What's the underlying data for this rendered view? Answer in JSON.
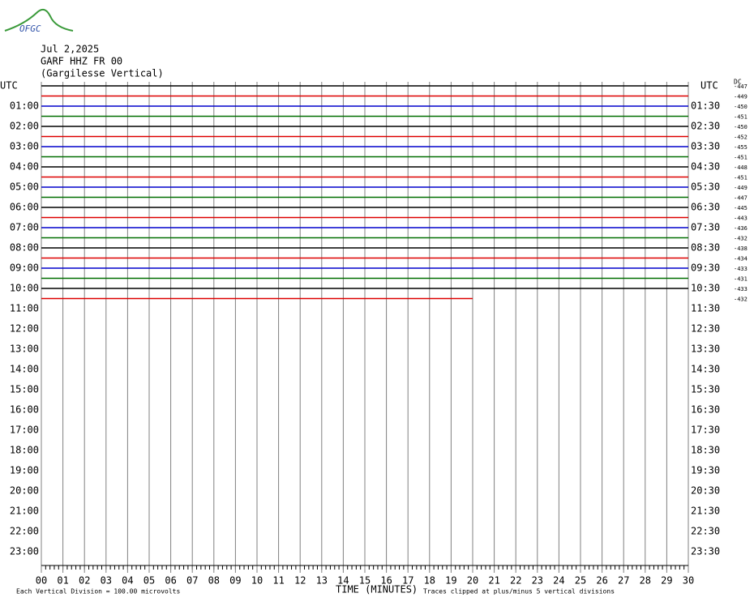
{
  "logo": "OFGC",
  "header": {
    "date": "Jul 2,2025",
    "station": "GARF HHZ FR 00",
    "location": "(Gargilesse Vertical)"
  },
  "chart_data": {
    "type": "helicorder",
    "left_axis_label": "UTC",
    "right_axis_label": "UTC",
    "dc_label": "DC",
    "left_labels": [
      "01:00",
      "02:00",
      "03:00",
      "04:00",
      "05:00",
      "06:00",
      "07:00",
      "08:00",
      "09:00",
      "10:00",
      "11:00",
      "12:00",
      "13:00",
      "14:00",
      "15:00",
      "16:00",
      "17:00",
      "18:00",
      "19:00",
      "20:00",
      "21:00",
      "22:00",
      "23:00"
    ],
    "right_labels": [
      "01:30",
      "02:30",
      "03:30",
      "04:30",
      "05:30",
      "06:30",
      "07:30",
      "08:30",
      "09:30",
      "10:30",
      "11:30",
      "12:30",
      "13:30",
      "14:30",
      "15:30",
      "16:30",
      "17:30",
      "18:30",
      "19:30",
      "20:30",
      "21:30",
      "22:30",
      "23:30"
    ],
    "dc_offsets": [
      -447,
      -449,
      -450,
      -451,
      -450,
      -452,
      -455,
      -451,
      -448,
      -451,
      -449,
      -447,
      -445,
      -443,
      -436,
      -432,
      -438,
      -434,
      -433,
      -431,
      -433,
      -432
    ],
    "trace_colors": [
      "#000000",
      "#dd0000",
      "#0000cc",
      "#006e00"
    ],
    "last_trace_end": 20,
    "xlim": [
      0,
      30
    ],
    "xticks": [
      {
        "value": 0,
        "label": "00"
      },
      {
        "value": 1,
        "label": "01"
      },
      {
        "value": 2,
        "label": "02"
      },
      {
        "value": 3,
        "label": "03"
      },
      {
        "value": 4,
        "label": "04"
      },
      {
        "value": 5,
        "label": "05"
      },
      {
        "value": 6,
        "label": "06"
      },
      {
        "value": 7,
        "label": "07"
      },
      {
        "value": 8,
        "label": "08"
      },
      {
        "value": 9,
        "label": "09"
      },
      10,
      11,
      12,
      13,
      14,
      15,
      16,
      17,
      18,
      19,
      20,
      21,
      22,
      23,
      24,
      25,
      26,
      27,
      28,
      29,
      30
    ],
    "xlabel": "TIME (MINUTES)",
    "footnote_left": "Each Vertical Division =  100.00 microvolts",
    "footnote_right": "Traces clipped at plus/minus 5 vertical divisions"
  }
}
